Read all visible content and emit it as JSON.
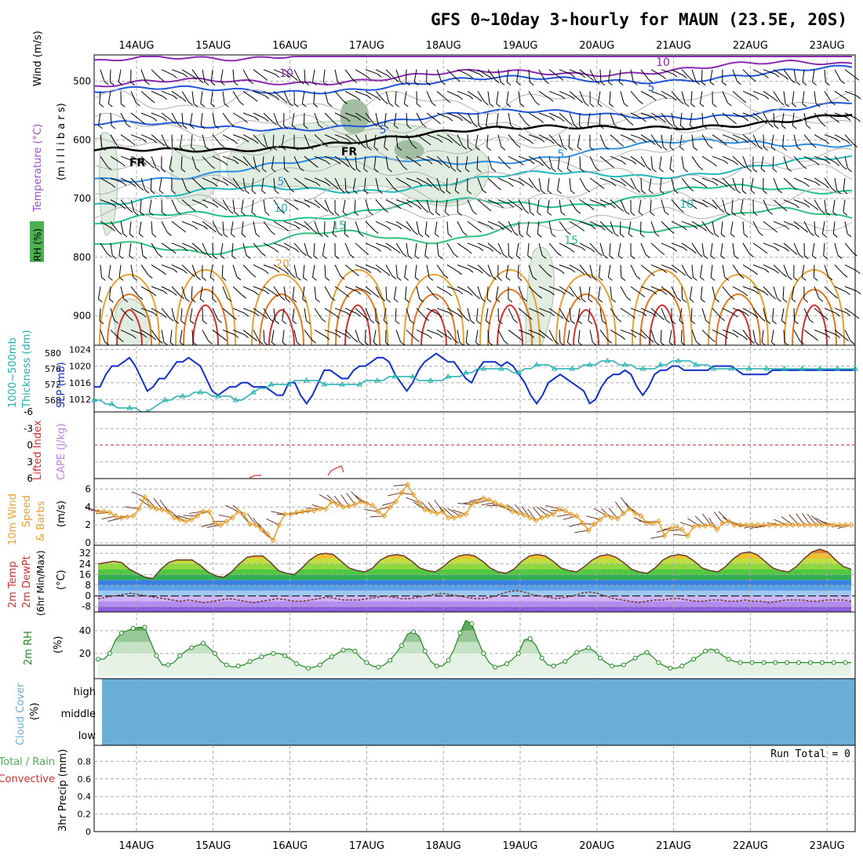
{
  "title": "GFS 0~10day 3-hourly for MAUN (23.5E, 20S)",
  "colors": {
    "grid": "#999999",
    "thickness": "#20b0b0",
    "slp": "#1030c8",
    "wind10m": "#e8a030",
    "rh_fill": "#6a9e6a",
    "rh_line": "#1f8a1f",
    "cloud": "#6baed6",
    "lifted": "#d03030",
    "tempColdBand": "#a070e0",
    "tempWarmBand": "#30c030"
  },
  "dates": [
    "14AUG",
    "15AUG",
    "16AUG",
    "17AUG",
    "18AUG",
    "19AUG",
    "20AUG",
    "21AUG",
    "22AUG",
    "23AUG"
  ],
  "panels": {
    "upper": {
      "labels": [
        "Wind (m/s)",
        "Temperature (°C)",
        "RH (%)",
        "(m i l l i b a r s)"
      ],
      "ticks": [
        "500",
        "600",
        "700",
        "800",
        "900"
      ],
      "contour_labels": [
        "10",
        "10",
        "5",
        "5",
        "FR",
        "FR",
        "5",
        "5",
        "10",
        "10",
        "15",
        "15",
        "20"
      ]
    },
    "slp": {
      "labels": [
        "1000~500mb",
        "Thickness (dm)",
        "SLP (mb)"
      ],
      "left_ticks": [
        "580",
        "576",
        "572",
        "568"
      ],
      "right_ticks": [
        "1024",
        "1020",
        "1016",
        "1012"
      ]
    },
    "cape": {
      "labels": [
        "Lifted Index",
        "CAPE (J/kg)"
      ],
      "ticks": [
        "-6",
        "-3",
        "0",
        "3",
        "6"
      ]
    },
    "wind10": {
      "labels": [
        "10m Wind",
        "Speed",
        "& Barbs",
        "(m/s)"
      ],
      "ticks": [
        "6",
        "4",
        "2",
        "0"
      ]
    },
    "temp2m": {
      "labels": [
        "2m Temp",
        "2m DewPt",
        "(6hr Min/Max)",
        "(°C)"
      ],
      "ticks": [
        "32",
        "24",
        "16",
        "8",
        "0",
        "-8"
      ]
    },
    "rh2m": {
      "labels": [
        "2m RH",
        "(%)"
      ],
      "ticks": [
        "40",
        "20"
      ]
    },
    "cloud": {
      "labels": [
        "Cloud Cover",
        "(%)"
      ],
      "levels": [
        "high",
        "middle",
        "low"
      ]
    },
    "precip": {
      "labels": [
        "Total / Rain",
        "Convective",
        "3hr Precip (mm)"
      ],
      "ticks": [
        "0.8",
        "0.6",
        "0.4",
        "0.2",
        "0"
      ],
      "run_total": "Run Total = 0"
    }
  },
  "chart_data": [
    {
      "type": "line",
      "title": "SLP and 1000~500mb Thickness",
      "series": [
        {
          "name": "SLP (mb)",
          "axis": "right",
          "ylim": [
            1009,
            1025
          ],
          "values": [
            1015,
            1015,
            1018,
            1020,
            1020,
            1021,
            1022,
            1020,
            1017,
            1014,
            1015,
            1017,
            1017,
            1019,
            1021,
            1021,
            1022,
            1021,
            1020,
            1017,
            1014,
            1013,
            1014,
            1015,
            1015,
            1016,
            1016,
            1015,
            1015,
            1015,
            1014,
            1013,
            1013,
            1016,
            1016,
            1013,
            1011,
            1013,
            1016,
            1019,
            1019,
            1018,
            1017,
            1017,
            1019,
            1020,
            1020,
            1021,
            1022,
            1022,
            1021,
            1018,
            1016,
            1014,
            1016,
            1019,
            1021,
            1022,
            1023,
            1022,
            1021,
            1021,
            1019,
            1017,
            1016,
            1019,
            1021,
            1021,
            1021,
            1020,
            1021,
            1020,
            1018,
            1016,
            1013,
            1011,
            1013,
            1016,
            1017,
            1018,
            1017,
            1016,
            1015,
            1014,
            1011,
            1012,
            1015,
            1017,
            1018,
            1018,
            1019,
            1018,
            1015,
            1013,
            1015,
            1018,
            1019,
            1019,
            1020,
            1020,
            1019,
            1019,
            1019,
            1019,
            1019,
            1020,
            1020,
            1020,
            1020,
            1019,
            1018,
            1018,
            1018,
            1018,
            1018,
            1019,
            1019,
            1019,
            1019,
            1019,
            1019,
            1019,
            1019,
            1019,
            1019,
            1019,
            1019,
            1019,
            1019,
            1019
          ]
        },
        {
          "name": "1000~500mb Thickness (dm)",
          "axis": "left",
          "ylim": [
            565,
            582
          ],
          "values": [
            568,
            568,
            567,
            567,
            566,
            566,
            566,
            566,
            565,
            565,
            566,
            567,
            568,
            568,
            569,
            569,
            569,
            570,
            570,
            570,
            569,
            569,
            569,
            569,
            568,
            568,
            569,
            570,
            571,
            571,
            572,
            572,
            572,
            572,
            573,
            573,
            573,
            573,
            573,
            572,
            572,
            572,
            572,
            572,
            572,
            572,
            573,
            573,
            573,
            573,
            574,
            574,
            574,
            574,
            574,
            573,
            573,
            573,
            573,
            573,
            574,
            574,
            574,
            575,
            575,
            576,
            576,
            576,
            576,
            576,
            576,
            575,
            575,
            576,
            576,
            577,
            577,
            577,
            576,
            576,
            576,
            576,
            576,
            577,
            577,
            577,
            578,
            578,
            578,
            577,
            577,
            577,
            576,
            576,
            576,
            576,
            577,
            577,
            578,
            578,
            578,
            578,
            577,
            577,
            577,
            576,
            576,
            576,
            576,
            576,
            576,
            576,
            576,
            576,
            576,
            576,
            576,
            576,
            576,
            576,
            576,
            576,
            576,
            576,
            576,
            576,
            576,
            576,
            576,
            576
          ]
        }
      ]
    },
    {
      "type": "line",
      "title": "10m Wind Speed",
      "ylim": [
        0,
        7
      ],
      "series": [
        {
          "name": "10m Wind Speed (m/s)",
          "values": [
            3.5,
            3.5,
            3.4,
            3.0,
            2.8,
            2.9,
            3.0,
            3.8,
            5.1,
            4.0,
            3.8,
            3.7,
            3.5,
            2.8,
            2.6,
            2.4,
            2.6,
            3.0,
            3.5,
            3.5,
            2.2,
            2.0,
            2.4,
            2.8,
            3.5,
            3.2,
            2.1,
            2.0,
            1.5,
            1.0,
            0.3,
            2.0,
            3.2,
            3.2,
            3.4,
            3.5,
            3.6,
            3.6,
            3.8,
            3.8,
            4.6,
            4.3,
            4.0,
            4.1,
            4.3,
            4.6,
            4.4,
            4.2,
            3.5,
            3.0,
            4.0,
            4.6,
            5.6,
            6.5,
            5.4,
            4.5,
            3.7,
            3.5,
            3.3,
            3.5,
            2.8,
            2.8,
            3.0,
            3.2,
            4.3,
            4.6,
            5.0,
            4.8,
            4.5,
            4.2,
            4.0,
            3.5,
            3.3,
            3.1,
            2.8,
            2.5,
            2.8,
            3.0,
            3.2,
            3.8,
            3.6,
            3.2,
            3.0,
            2.2,
            1.4,
            2.1,
            2.6,
            3.1,
            2.8,
            2.7,
            3.3,
            3.8,
            3.3,
            3.0,
            2.2,
            2.2,
            2.4,
            0.8,
            1.6,
            1.8,
            1.5,
            0.8,
            1.8,
            1.9,
            1.9,
            2.0,
            1.5,
            2.2,
            2.4,
            2.0,
            2.0,
            2.0,
            2.0,
            2.0,
            2.0,
            2.0,
            2.0,
            2.0,
            2.0,
            2.0,
            2.0,
            2.0,
            2.0,
            2.0,
            2.0,
            2.0,
            2.0,
            2.0,
            2.0,
            2.0
          ]
        }
      ]
    },
    {
      "type": "area",
      "title": "2m Temp / 2m DewPt",
      "ylim": [
        -12,
        38
      ],
      "series": [
        {
          "name": "2m Temp (°C)",
          "values": [
            24,
            25,
            26,
            25,
            20,
            17,
            14,
            13,
            20,
            25,
            27,
            27,
            27,
            23,
            18,
            15,
            14,
            18,
            24,
            29,
            30,
            30,
            25,
            19,
            17,
            16,
            21,
            27,
            31,
            32,
            31,
            26,
            21,
            19,
            18,
            21,
            27,
            30,
            31,
            30,
            26,
            21,
            19,
            18,
            22,
            27,
            30,
            31,
            30,
            26,
            21,
            18,
            17,
            20,
            26,
            30,
            31,
            30,
            26,
            21,
            19,
            18,
            22,
            27,
            30,
            31,
            29,
            25,
            20,
            18,
            17,
            21,
            27,
            30,
            31,
            30,
            26,
            21,
            19,
            18,
            22,
            28,
            32,
            33,
            31,
            26,
            21,
            19,
            18,
            22,
            28,
            33,
            35,
            33,
            27,
            22,
            20
          ]
        },
        {
          "name": "2m DewPt (°C)",
          "values": [
            -2,
            -1,
            0,
            1,
            2,
            1,
            0,
            -1,
            -2,
            -3,
            -4,
            -3,
            -4,
            -5,
            -4,
            -3,
            -2,
            -3,
            -4,
            -5,
            -4,
            -3,
            -2,
            -3,
            -4,
            -4,
            -3,
            -2,
            -1,
            -2,
            -3,
            -3,
            -3,
            -2,
            -1,
            0,
            -1,
            -2,
            -2,
            -1,
            0,
            1,
            2,
            1,
            0,
            -1,
            -2,
            -2,
            -1,
            1,
            3,
            4,
            3,
            1,
            0,
            -1,
            -2,
            -1,
            0,
            2,
            3,
            2,
            0,
            -2,
            -3,
            -4,
            -5,
            -4,
            -3,
            -3,
            -2,
            -2,
            -3,
            -4,
            -4,
            -3,
            -3,
            -4,
            -4,
            -3,
            -4,
            -4,
            -5,
            -4,
            -3,
            -3,
            -3,
            -4,
            -4,
            -3,
            -3,
            -3,
            -4
          ]
        }
      ]
    },
    {
      "type": "area",
      "title": "2m RH",
      "ylim": [
        0,
        55
      ],
      "series": [
        {
          "name": "2m RH (%)",
          "values": [
            15,
            15,
            20,
            32,
            38,
            40,
            42,
            43,
            43,
            30,
            18,
            10,
            10,
            12,
            18,
            22,
            25,
            27,
            29,
            25,
            20,
            13,
            10,
            8,
            9,
            10,
            13,
            15,
            17,
            19,
            20,
            20,
            18,
            15,
            11,
            9,
            7,
            8,
            10,
            14,
            17,
            20,
            23,
            24,
            22,
            16,
            12,
            9,
            8,
            10,
            14,
            20,
            27,
            37,
            39,
            35,
            22,
            13,
            9,
            9,
            14,
            24,
            38,
            49,
            46,
            32,
            20,
            12,
            8,
            9,
            11,
            15,
            20,
            32,
            33,
            27,
            16,
            10,
            9,
            11,
            13,
            17,
            21,
            23,
            25,
            22,
            16,
            12,
            9,
            9,
            10,
            13,
            16,
            19,
            21,
            17,
            12,
            9,
            7,
            7,
            9,
            12,
            15,
            18,
            22,
            24,
            22,
            18,
            15,
            13,
            12,
            12,
            12,
            12,
            12,
            12,
            12,
            12,
            12,
            12,
            12,
            12,
            12,
            12,
            12,
            12,
            12,
            12,
            12,
            12
          ]
        }
      ]
    },
    {
      "type": "bar",
      "title": "3hr Precip",
      "ylim": [
        0,
        1
      ],
      "values": [],
      "run_total": 0
    }
  ]
}
